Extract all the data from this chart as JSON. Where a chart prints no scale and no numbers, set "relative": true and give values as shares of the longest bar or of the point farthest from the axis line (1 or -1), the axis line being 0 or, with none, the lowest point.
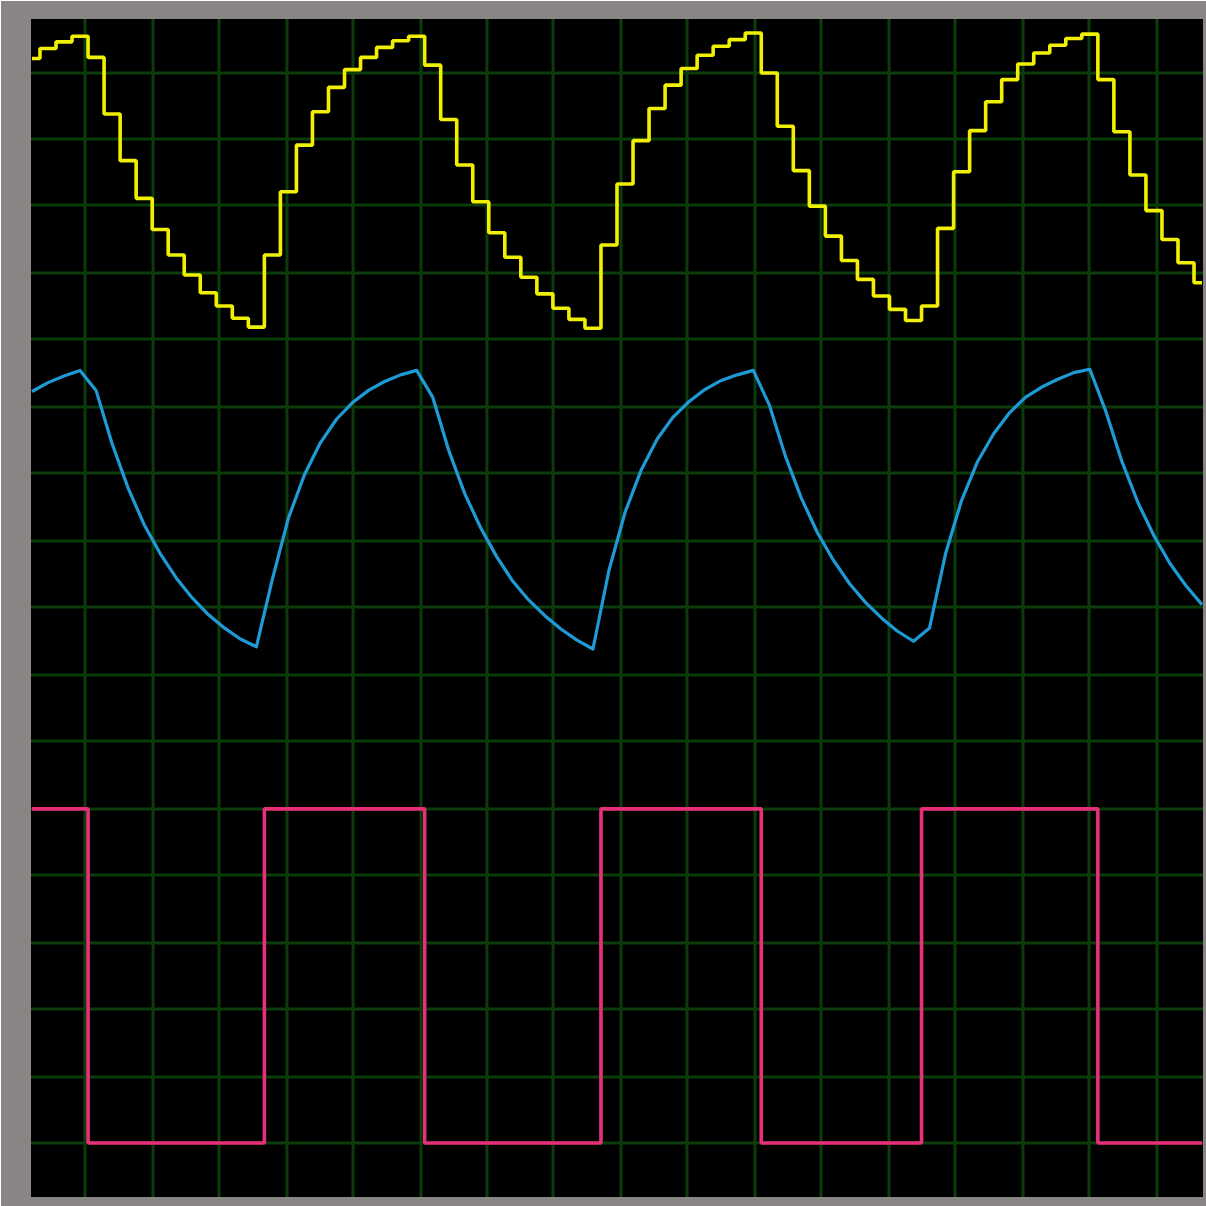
{
  "chart_data": {
    "type": "line",
    "relative": true,
    "grid": true,
    "categories": [
      null,
      null,
      null,
      null,
      null,
      null,
      null,
      null,
      null,
      null,
      null,
      null,
      null,
      null,
      null,
      null,
      null,
      null,
      null,
      null,
      null,
      null,
      null,
      null,
      null,
      null,
      null,
      null,
      null,
      null,
      null,
      null,
      null,
      null,
      null,
      null,
      null,
      null,
      null,
      null,
      null,
      null,
      null,
      null,
      null,
      null,
      null,
      null,
      null,
      null,
      null,
      null,
      null,
      null,
      null,
      null,
      null,
      null,
      null,
      null,
      null,
      null,
      null,
      null,
      null,
      null,
      null,
      null,
      null,
      null,
      null,
      null,
      null,
      null
    ],
    "series": [
      {
        "type": "step",
        "color": "#f0f000",
        "values": [
          0.977,
          0.986,
          0.992,
          0.997,
          0.978,
          0.927,
          0.885,
          0.851,
          0.823,
          0.8,
          0.782,
          0.766,
          0.754,
          0.743,
          0.735,
          0.8,
          0.857,
          0.899,
          0.929,
          0.951,
          0.967,
          0.978,
          0.987,
          0.993,
          0.997,
          0.971,
          0.922,
          0.881,
          0.848,
          0.82,
          0.798,
          0.78,
          0.765,
          0.752,
          0.742,
          0.734,
          0.809,
          0.864,
          0.903,
          0.932,
          0.953,
          0.968,
          0.98,
          0.988,
          0.994,
          1.0,
          0.964,
          0.916,
          0.876,
          0.844,
          0.817,
          0.795,
          0.778,
          0.763,
          0.751,
          0.741,
          0.754,
          0.824,
          0.875,
          0.912,
          0.938,
          0.958,
          0.972,
          0.982,
          0.989,
          0.995,
          0.999,
          0.958,
          0.911,
          0.872,
          0.84,
          0.814,
          0.793,
          0.775
        ]
      },
      {
        "type": "line",
        "color": "#1e9bd7",
        "values": [
          0.677,
          0.685,
          0.691,
          0.696,
          0.678,
          0.63,
          0.59,
          0.557,
          0.531,
          0.509,
          0.491,
          0.476,
          0.464,
          0.454,
          0.447,
          0.508,
          0.563,
          0.602,
          0.631,
          0.652,
          0.667,
          0.678,
          0.686,
          0.692,
          0.696,
          0.672,
          0.624,
          0.585,
          0.554,
          0.528,
          0.506,
          0.489,
          0.475,
          0.463,
          0.453,
          0.445,
          0.516,
          0.568,
          0.606,
          0.634,
          0.654,
          0.668,
          0.679,
          0.687,
          0.692,
          0.696,
          0.665,
          0.619,
          0.581,
          0.55,
          0.525,
          0.504,
          0.487,
          0.473,
          0.461,
          0.452,
          0.464,
          0.531,
          0.579,
          0.614,
          0.639,
          0.658,
          0.672,
          0.681,
          0.688,
          0.694,
          0.697,
          0.659,
          0.614,
          0.577,
          0.547,
          0.522,
          0.502,
          0.485
        ]
      },
      {
        "type": "step",
        "color": "#e8307a",
        "values": [
          0.301,
          0.301,
          0.301,
          0.301,
          0,
          0,
          0,
          0,
          0,
          0,
          0,
          0,
          0,
          0,
          0,
          0.301,
          0.301,
          0.301,
          0.301,
          0.301,
          0.301,
          0.301,
          0.301,
          0.301,
          0.301,
          0,
          0,
          0,
          0,
          0,
          0,
          0,
          0,
          0,
          0,
          0,
          0.301,
          0.301,
          0.301,
          0.301,
          0.301,
          0.301,
          0.301,
          0.301,
          0.301,
          0.301,
          0,
          0,
          0,
          0,
          0,
          0,
          0,
          0,
          0,
          0,
          0.301,
          0.301,
          0.301,
          0.301,
          0.301,
          0.301,
          0.301,
          0.301,
          0.301,
          0.301,
          0.301,
          0,
          0,
          0,
          0,
          0,
          0,
          0
        ]
      }
    ]
  }
}
